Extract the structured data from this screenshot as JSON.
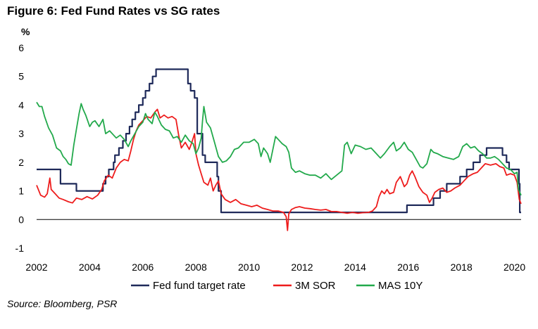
{
  "title": "Figure 6: Fed Fund Rates vs SG rates",
  "source": "Source: Bloomberg, PSR",
  "chart_data": {
    "type": "line",
    "title": "Figure 6: Fed Fund Rates vs SG rates",
    "ylabel": "%",
    "xlabel": "",
    "xlim": [
      2002,
      2020.25
    ],
    "ylim": [
      -1,
      6
    ],
    "x_ticks": [
      "2002",
      "2004",
      "2006",
      "2008",
      "2010",
      "2012",
      "2014",
      "2016",
      "2018",
      "2020"
    ],
    "y_ticks": [
      "-1",
      "0",
      "1",
      "2",
      "3",
      "4",
      "5",
      "6"
    ],
    "grid": false,
    "legend_position": "bottom",
    "series": [
      {
        "name": "Fed fund target rate",
        "color": "#1f2a5a",
        "step": true,
        "points": [
          [
            2002.0,
            1.75
          ],
          [
            2002.9,
            1.25
          ],
          [
            2003.5,
            1.0
          ],
          [
            2004.5,
            1.25
          ],
          [
            2004.6,
            1.5
          ],
          [
            2004.72,
            1.75
          ],
          [
            2004.9,
            2.0
          ],
          [
            2004.95,
            2.25
          ],
          [
            2005.1,
            2.5
          ],
          [
            2005.25,
            2.75
          ],
          [
            2005.37,
            3.0
          ],
          [
            2005.5,
            3.25
          ],
          [
            2005.6,
            3.5
          ],
          [
            2005.72,
            3.75
          ],
          [
            2005.85,
            4.0
          ],
          [
            2006.0,
            4.25
          ],
          [
            2006.1,
            4.5
          ],
          [
            2006.25,
            4.75
          ],
          [
            2006.37,
            5.0
          ],
          [
            2006.5,
            5.25
          ],
          [
            2007.7,
            4.75
          ],
          [
            2007.8,
            4.5
          ],
          [
            2007.95,
            4.25
          ],
          [
            2008.05,
            3.0
          ],
          [
            2008.25,
            2.25
          ],
          [
            2008.35,
            2.0
          ],
          [
            2008.8,
            1.5
          ],
          [
            2008.85,
            1.0
          ],
          [
            2008.95,
            0.25
          ],
          [
            2015.95,
            0.5
          ],
          [
            2016.95,
            0.75
          ],
          [
            2017.2,
            1.0
          ],
          [
            2017.45,
            1.25
          ],
          [
            2017.95,
            1.5
          ],
          [
            2018.2,
            1.75
          ],
          [
            2018.45,
            2.0
          ],
          [
            2018.7,
            2.25
          ],
          [
            2018.95,
            2.5
          ],
          [
            2019.55,
            2.25
          ],
          [
            2019.7,
            2.0
          ],
          [
            2019.8,
            1.75
          ],
          [
            2020.17,
            1.25
          ],
          [
            2020.2,
            0.25
          ],
          [
            2020.25,
            0.25
          ]
        ]
      },
      {
        "name": "3M SOR",
        "color": "#ee1c1c",
        "step": false,
        "points": [
          [
            2002.0,
            1.2
          ],
          [
            2002.15,
            0.85
          ],
          [
            2002.3,
            0.78
          ],
          [
            2002.4,
            0.9
          ],
          [
            2002.5,
            1.45
          ],
          [
            2002.55,
            1.05
          ],
          [
            2002.7,
            0.9
          ],
          [
            2002.85,
            0.75
          ],
          [
            2003.0,
            0.7
          ],
          [
            2003.2,
            0.62
          ],
          [
            2003.35,
            0.58
          ],
          [
            2003.5,
            0.75
          ],
          [
            2003.7,
            0.7
          ],
          [
            2003.9,
            0.8
          ],
          [
            2004.1,
            0.72
          ],
          [
            2004.3,
            0.85
          ],
          [
            2004.45,
            1.05
          ],
          [
            2004.55,
            1.35
          ],
          [
            2004.7,
            1.55
          ],
          [
            2004.85,
            1.45
          ],
          [
            2005.0,
            1.8
          ],
          [
            2005.15,
            2.0
          ],
          [
            2005.3,
            2.1
          ],
          [
            2005.45,
            2.05
          ],
          [
            2005.55,
            2.4
          ],
          [
            2005.65,
            2.8
          ],
          [
            2005.75,
            3.1
          ],
          [
            2005.85,
            3.3
          ],
          [
            2006.0,
            3.45
          ],
          [
            2006.15,
            3.6
          ],
          [
            2006.3,
            3.55
          ],
          [
            2006.45,
            3.75
          ],
          [
            2006.55,
            3.85
          ],
          [
            2006.65,
            3.55
          ],
          [
            2006.8,
            3.65
          ],
          [
            2006.95,
            3.55
          ],
          [
            2007.1,
            3.6
          ],
          [
            2007.25,
            3.5
          ],
          [
            2007.35,
            2.95
          ],
          [
            2007.45,
            2.5
          ],
          [
            2007.6,
            2.7
          ],
          [
            2007.75,
            2.45
          ],
          [
            2007.85,
            2.7
          ],
          [
            2007.95,
            3.0
          ],
          [
            2008.0,
            2.3
          ],
          [
            2008.1,
            1.9
          ],
          [
            2008.2,
            1.6
          ],
          [
            2008.3,
            1.3
          ],
          [
            2008.45,
            1.2
          ],
          [
            2008.55,
            1.45
          ],
          [
            2008.65,
            1.0
          ],
          [
            2008.75,
            1.2
          ],
          [
            2008.85,
            1.35
          ],
          [
            2008.95,
            0.9
          ],
          [
            2009.1,
            0.7
          ],
          [
            2009.3,
            0.6
          ],
          [
            2009.5,
            0.7
          ],
          [
            2009.7,
            0.55
          ],
          [
            2009.9,
            0.5
          ],
          [
            2010.1,
            0.45
          ],
          [
            2010.3,
            0.5
          ],
          [
            2010.5,
            0.4
          ],
          [
            2010.7,
            0.35
          ],
          [
            2010.9,
            0.3
          ],
          [
            2011.1,
            0.3
          ],
          [
            2011.3,
            0.25
          ],
          [
            2011.4,
            0.1
          ],
          [
            2011.45,
            -0.38
          ],
          [
            2011.5,
            0.2
          ],
          [
            2011.6,
            0.35
          ],
          [
            2011.75,
            0.42
          ],
          [
            2011.9,
            0.45
          ],
          [
            2012.1,
            0.4
          ],
          [
            2012.3,
            0.38
          ],
          [
            2012.5,
            0.35
          ],
          [
            2012.7,
            0.33
          ],
          [
            2012.9,
            0.35
          ],
          [
            2013.1,
            0.28
          ],
          [
            2013.3,
            0.28
          ],
          [
            2013.5,
            0.25
          ],
          [
            2013.7,
            0.22
          ],
          [
            2013.9,
            0.25
          ],
          [
            2014.1,
            0.22
          ],
          [
            2014.3,
            0.24
          ],
          [
            2014.5,
            0.25
          ],
          [
            2014.65,
            0.3
          ],
          [
            2014.8,
            0.45
          ],
          [
            2014.9,
            0.8
          ],
          [
            2015.0,
            1.0
          ],
          [
            2015.1,
            0.9
          ],
          [
            2015.2,
            1.05
          ],
          [
            2015.3,
            0.9
          ],
          [
            2015.45,
            0.95
          ],
          [
            2015.55,
            1.3
          ],
          [
            2015.7,
            1.5
          ],
          [
            2015.85,
            1.15
          ],
          [
            2015.95,
            1.25
          ],
          [
            2016.05,
            1.55
          ],
          [
            2016.15,
            1.7
          ],
          [
            2016.25,
            1.5
          ],
          [
            2016.4,
            1.15
          ],
          [
            2016.55,
            0.95
          ],
          [
            2016.7,
            0.85
          ],
          [
            2016.8,
            0.6
          ],
          [
            2016.9,
            0.75
          ],
          [
            2017.0,
            0.95
          ],
          [
            2017.15,
            1.05
          ],
          [
            2017.3,
            1.1
          ],
          [
            2017.45,
            0.95
          ],
          [
            2017.6,
            1.0
          ],
          [
            2017.75,
            1.1
          ],
          [
            2017.95,
            1.2
          ],
          [
            2018.1,
            1.35
          ],
          [
            2018.25,
            1.5
          ],
          [
            2018.45,
            1.6
          ],
          [
            2018.6,
            1.65
          ],
          [
            2018.75,
            1.8
          ],
          [
            2018.9,
            1.95
          ],
          [
            2019.1,
            1.9
          ],
          [
            2019.3,
            1.95
          ],
          [
            2019.45,
            1.85
          ],
          [
            2019.6,
            1.8
          ],
          [
            2019.7,
            1.55
          ],
          [
            2019.85,
            1.6
          ],
          [
            2020.0,
            1.55
          ],
          [
            2020.1,
            1.3
          ],
          [
            2020.18,
            0.7
          ],
          [
            2020.25,
            0.55
          ]
        ]
      },
      {
        "name": "MAS 10Y",
        "color": "#22a94b",
        "step": false,
        "points": [
          [
            2002.0,
            4.1
          ],
          [
            2002.1,
            3.95
          ],
          [
            2002.2,
            3.95
          ],
          [
            2002.3,
            3.6
          ],
          [
            2002.45,
            3.2
          ],
          [
            2002.6,
            2.95
          ],
          [
            2002.75,
            2.5
          ],
          [
            2002.9,
            2.4
          ],
          [
            2003.0,
            2.2
          ],
          [
            2003.1,
            2.1
          ],
          [
            2003.2,
            1.95
          ],
          [
            2003.3,
            1.9
          ],
          [
            2003.4,
            2.6
          ],
          [
            2003.5,
            3.15
          ],
          [
            2003.6,
            3.7
          ],
          [
            2003.68,
            4.05
          ],
          [
            2003.75,
            3.85
          ],
          [
            2003.85,
            3.65
          ],
          [
            2004.0,
            3.25
          ],
          [
            2004.1,
            3.4
          ],
          [
            2004.2,
            3.45
          ],
          [
            2004.35,
            3.25
          ],
          [
            2004.5,
            3.5
          ],
          [
            2004.6,
            3.0
          ],
          [
            2004.75,
            3.1
          ],
          [
            2004.9,
            2.95
          ],
          [
            2005.0,
            2.85
          ],
          [
            2005.15,
            2.95
          ],
          [
            2005.3,
            2.8
          ],
          [
            2005.45,
            2.55
          ],
          [
            2005.55,
            2.75
          ],
          [
            2005.7,
            3.0
          ],
          [
            2005.85,
            3.25
          ],
          [
            2006.0,
            3.4
          ],
          [
            2006.1,
            3.7
          ],
          [
            2006.2,
            3.5
          ],
          [
            2006.35,
            3.35
          ],
          [
            2006.45,
            3.75
          ],
          [
            2006.55,
            3.6
          ],
          [
            2006.7,
            3.3
          ],
          [
            2006.85,
            3.15
          ],
          [
            2007.0,
            3.1
          ],
          [
            2007.15,
            2.85
          ],
          [
            2007.3,
            2.9
          ],
          [
            2007.45,
            2.7
          ],
          [
            2007.6,
            2.95
          ],
          [
            2007.75,
            2.75
          ],
          [
            2007.9,
            2.65
          ],
          [
            2008.0,
            2.3
          ],
          [
            2008.1,
            2.5
          ],
          [
            2008.2,
            2.85
          ],
          [
            2008.25,
            3.45
          ],
          [
            2008.3,
            3.95
          ],
          [
            2008.4,
            3.4
          ],
          [
            2008.55,
            3.2
          ],
          [
            2008.7,
            2.7
          ],
          [
            2008.85,
            2.2
          ],
          [
            2009.0,
            2.0
          ],
          [
            2009.15,
            2.05
          ],
          [
            2009.3,
            2.2
          ],
          [
            2009.45,
            2.45
          ],
          [
            2009.6,
            2.5
          ],
          [
            2009.8,
            2.7
          ],
          [
            2010.0,
            2.7
          ],
          [
            2010.2,
            2.8
          ],
          [
            2010.35,
            2.65
          ],
          [
            2010.45,
            2.2
          ],
          [
            2010.55,
            2.5
          ],
          [
            2010.7,
            2.3
          ],
          [
            2010.8,
            2.0
          ],
          [
            2010.9,
            2.45
          ],
          [
            2011.0,
            2.9
          ],
          [
            2011.1,
            2.8
          ],
          [
            2011.25,
            2.65
          ],
          [
            2011.4,
            2.55
          ],
          [
            2011.5,
            2.35
          ],
          [
            2011.6,
            1.8
          ],
          [
            2011.75,
            1.65
          ],
          [
            2011.9,
            1.7
          ],
          [
            2012.1,
            1.6
          ],
          [
            2012.3,
            1.55
          ],
          [
            2012.5,
            1.55
          ],
          [
            2012.7,
            1.45
          ],
          [
            2012.9,
            1.6
          ],
          [
            2013.1,
            1.4
          ],
          [
            2013.3,
            1.55
          ],
          [
            2013.5,
            1.7
          ],
          [
            2013.6,
            2.6
          ],
          [
            2013.7,
            2.7
          ],
          [
            2013.85,
            2.3
          ],
          [
            2014.0,
            2.6
          ],
          [
            2014.2,
            2.55
          ],
          [
            2014.4,
            2.45
          ],
          [
            2014.6,
            2.5
          ],
          [
            2014.8,
            2.3
          ],
          [
            2014.95,
            2.15
          ],
          [
            2015.1,
            2.3
          ],
          [
            2015.3,
            2.55
          ],
          [
            2015.45,
            2.7
          ],
          [
            2015.55,
            2.4
          ],
          [
            2015.7,
            2.5
          ],
          [
            2015.85,
            2.7
          ],
          [
            2016.0,
            2.45
          ],
          [
            2016.15,
            2.35
          ],
          [
            2016.3,
            2.1
          ],
          [
            2016.45,
            1.85
          ],
          [
            2016.55,
            1.8
          ],
          [
            2016.7,
            1.95
          ],
          [
            2016.85,
            2.45
          ],
          [
            2016.95,
            2.35
          ],
          [
            2017.1,
            2.3
          ],
          [
            2017.3,
            2.2
          ],
          [
            2017.5,
            2.15
          ],
          [
            2017.7,
            2.1
          ],
          [
            2017.9,
            2.2
          ],
          [
            2018.05,
            2.55
          ],
          [
            2018.2,
            2.65
          ],
          [
            2018.35,
            2.5
          ],
          [
            2018.5,
            2.55
          ],
          [
            2018.65,
            2.4
          ],
          [
            2018.8,
            2.3
          ],
          [
            2018.95,
            2.15
          ],
          [
            2019.1,
            2.15
          ],
          [
            2019.25,
            2.2
          ],
          [
            2019.4,
            2.1
          ],
          [
            2019.55,
            1.95
          ],
          [
            2019.7,
            1.8
          ],
          [
            2019.85,
            1.75
          ],
          [
            2020.0,
            1.6
          ],
          [
            2020.1,
            1.65
          ],
          [
            2020.15,
            1.05
          ],
          [
            2020.2,
            0.95
          ],
          [
            2020.25,
            0.85
          ]
        ]
      }
    ]
  }
}
